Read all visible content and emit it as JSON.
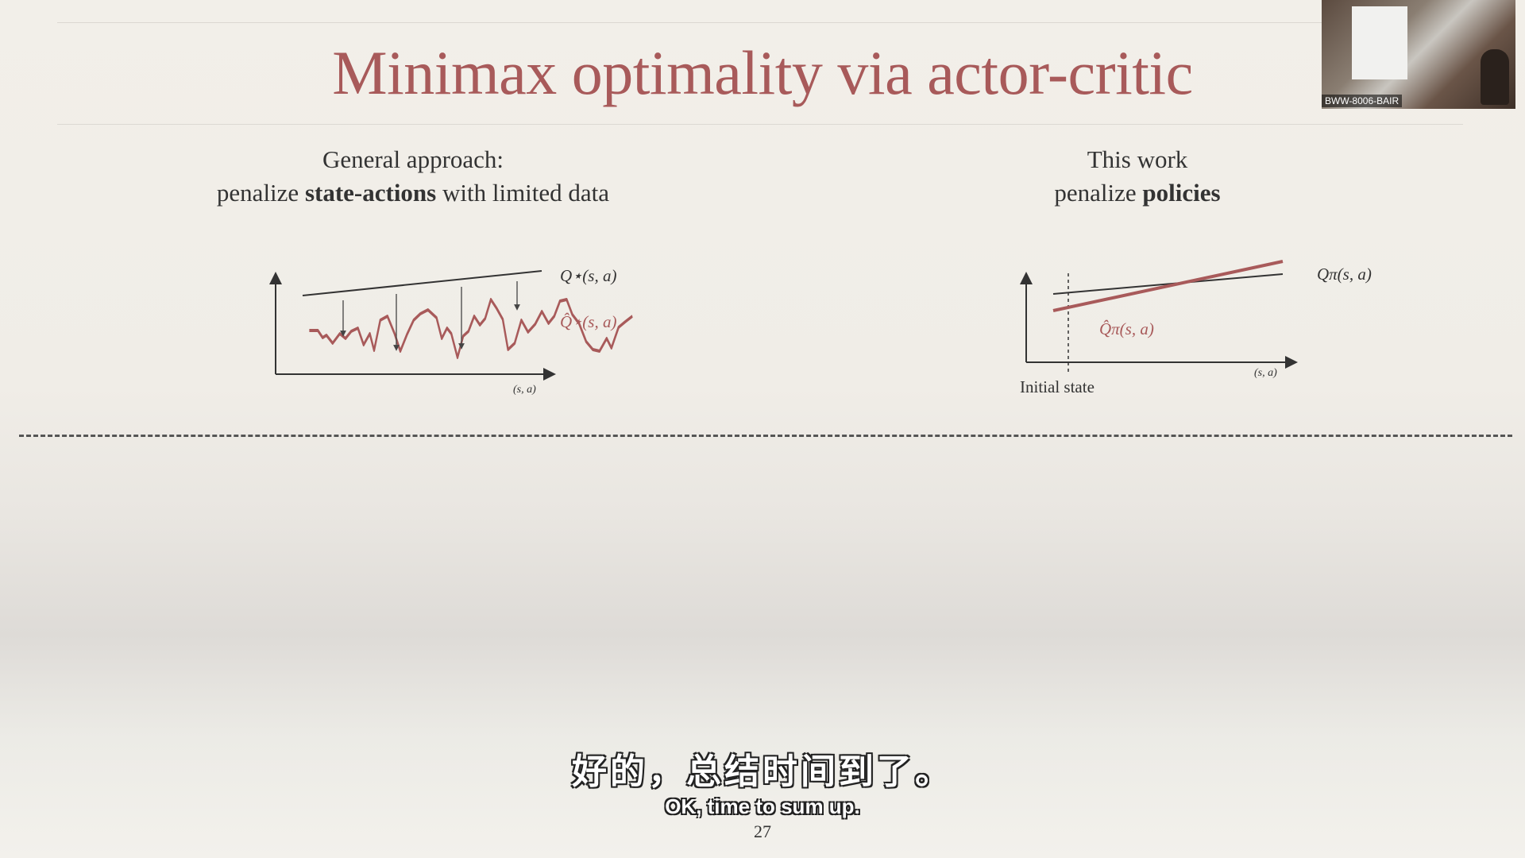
{
  "slide": {
    "title": "Minimax optimality via actor-critic",
    "left": {
      "line1": "General approach:",
      "line2_pre": "penalize ",
      "line2_bold": "state-actions",
      "line2_post": " with limited data",
      "upper_label": "Q⋆(s, a)",
      "lower_label": "Q̂⋆(s, a)",
      "x_label": "(s, a)"
    },
    "right": {
      "line1": "This work",
      "line2_pre": "penalize ",
      "line2_bold": "policies",
      "upper_label": "Qπ(s, a)",
      "lower_label": "Q̂π(s, a)",
      "x_label": "(s, a)",
      "initial_state": "Initial state"
    },
    "page_number": "27"
  },
  "webcam": {
    "label": "BWW-8006-BAIR"
  },
  "subtitles": {
    "chinese": "好的，总结时间到了。",
    "english": "OK, time to sum up."
  },
  "colors": {
    "accent": "#a85a5a",
    "text": "#2c2c2c",
    "line": "#3a3a3a"
  }
}
